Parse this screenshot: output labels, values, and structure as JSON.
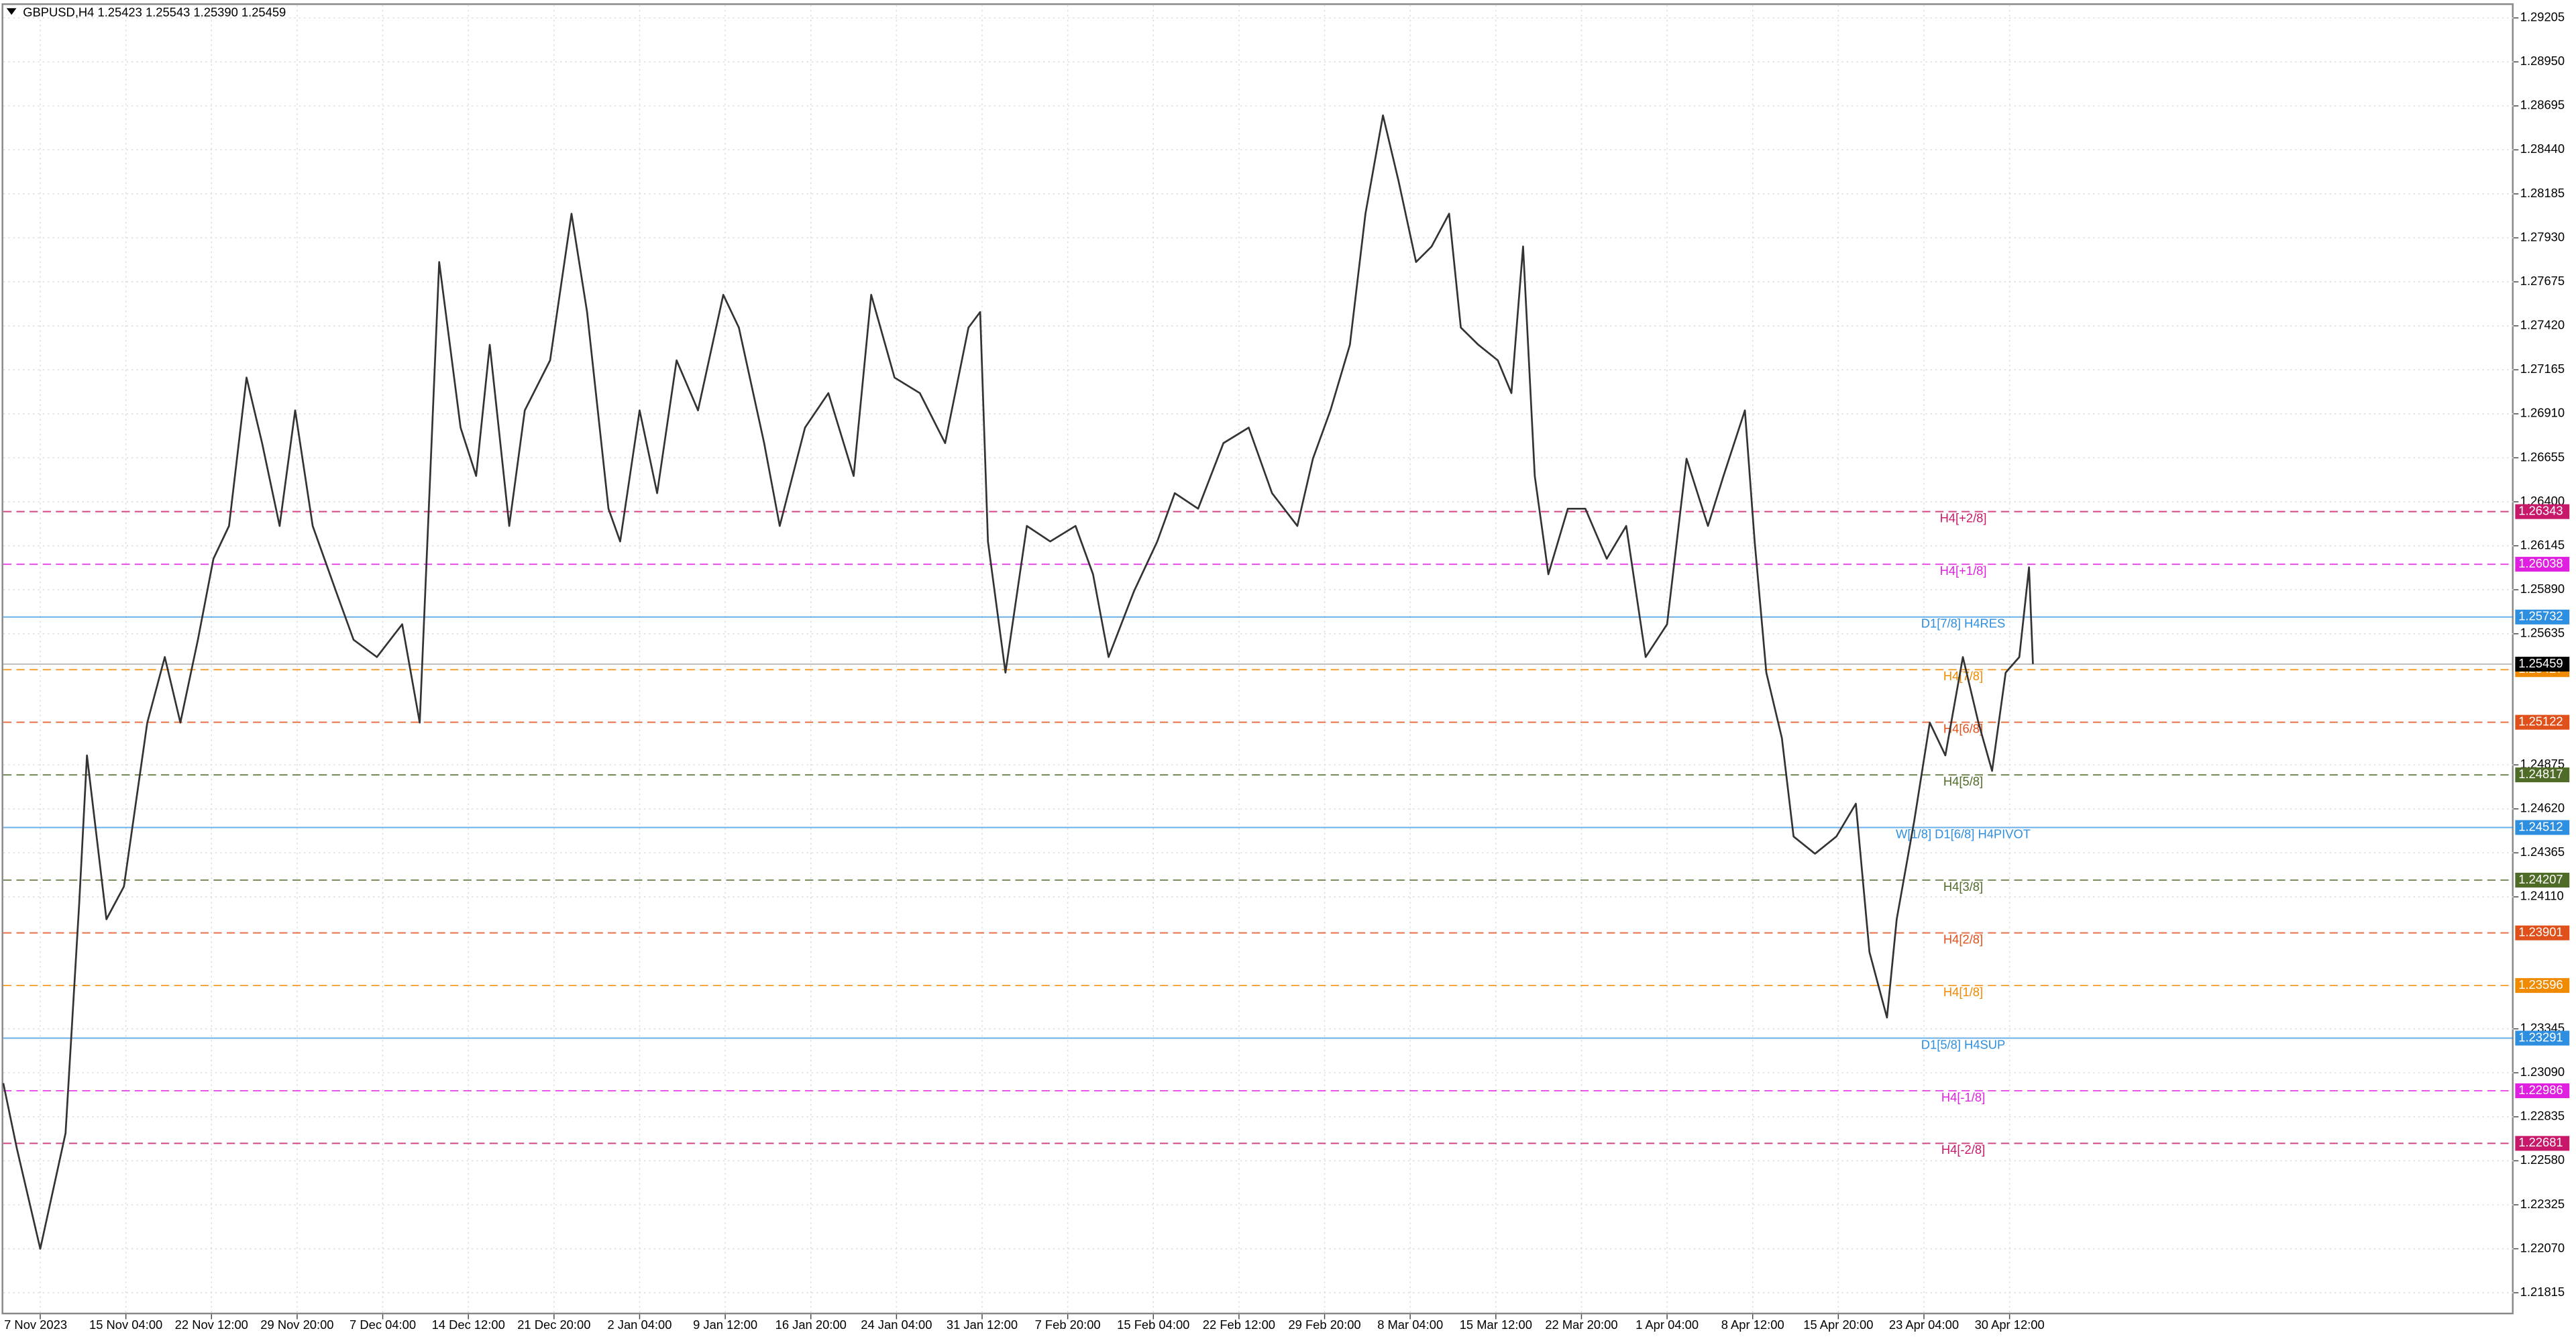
{
  "chart_data": {
    "type": "line",
    "title": "GBPUSD,H4  1.25423 1.25543 1.25390 1.25459",
    "xlim": [
      0,
      1290
    ],
    "ylim": [
      1.2169,
      1.2928
    ],
    "grid": true,
    "xticks": [
      {
        "value": 19,
        "label": "7 Nov 2023"
      },
      {
        "value": 63,
        "label": "15 Nov 04:00"
      },
      {
        "value": 107,
        "label": "22 Nov 12:00"
      },
      {
        "value": 151,
        "label": "29 Nov 20:00"
      },
      {
        "value": 195,
        "label": "7 Dec 04:00"
      },
      {
        "value": 239,
        "label": "14 Dec 12:00"
      },
      {
        "value": 283,
        "label": "21 Dec 20:00"
      },
      {
        "value": 327,
        "label": "2 Jan 04:00"
      },
      {
        "value": 371,
        "label": "9 Jan 12:00"
      },
      {
        "value": 415,
        "label": "16 Jan 20:00"
      },
      {
        "value": 459,
        "label": "24 Jan 04:00"
      },
      {
        "value": 503,
        "label": "31 Jan 12:00"
      },
      {
        "value": 547,
        "label": "7 Feb 20:00"
      },
      {
        "value": 591,
        "label": "15 Feb 04:00"
      },
      {
        "value": 635,
        "label": "22 Feb 12:00"
      },
      {
        "value": 679,
        "label": "29 Feb 20:00"
      },
      {
        "value": 723,
        "label": "8 Mar 04:00"
      },
      {
        "value": 767,
        "label": "15 Mar 12:00"
      },
      {
        "value": 811,
        "label": "22 Mar 20:00"
      },
      {
        "value": 855,
        "label": "1 Apr 04:00"
      },
      {
        "value": 899,
        "label": "8 Apr 12:00"
      },
      {
        "value": 943,
        "label": "15 Apr 20:00"
      },
      {
        "value": 987,
        "label": "23 Apr 04:00"
      },
      {
        "value": 1031,
        "label": "30 Apr 12:00"
      }
    ],
    "yticks": [
      1.29205,
      {
        "value": 1.2895,
        "label": "1.28950"
      },
      1.28695,
      {
        "value": 1.2844,
        "label": "1.28440"
      },
      1.28185,
      {
        "value": 1.2793,
        "label": "1.27930"
      },
      1.27675,
      {
        "value": 1.2742,
        "label": "1.27420"
      },
      1.27165,
      {
        "value": 1.2691,
        "label": "1.26910"
      },
      1.26655,
      {
        "value": 1.264,
        "label": "1.26400"
      },
      1.26145,
      {
        "value": 1.2589,
        "label": "1.25890"
      },
      1.25635,
      1.24875,
      {
        "value": 1.2462,
        "label": "1.24620"
      },
      1.24365,
      {
        "value": 1.2411,
        "label": "1.24110"
      },
      1.23345,
      {
        "value": 1.2309,
        "label": "1.23090"
      },
      1.22835,
      {
        "value": 1.2258,
        "label": "1.22580"
      },
      1.22325,
      {
        "value": 1.2207,
        "label": "1.22070"
      },
      1.21815
    ],
    "series": [
      {
        "name": "GBPUSD,H4",
        "color": "#333333",
        "x": [
          0,
          7,
          19,
          32,
          39,
          43,
          53,
          62,
          74,
          83,
          91,
          100,
          108,
          116,
          125,
          133,
          142,
          150,
          159,
          171,
          180,
          192,
          205,
          214,
          219,
          224,
          235,
          243,
          250,
          260,
          268,
          281,
          292,
          300,
          311,
          317,
          327,
          336,
          346,
          357,
          370,
          378,
          391,
          399,
          412,
          424,
          437,
          446,
          458,
          471,
          484,
          496,
          502,
          506,
          515,
          526,
          538,
          551,
          560,
          568,
          581,
          593,
          602,
          614,
          627,
          640,
          652,
          665,
          673,
          682,
          692,
          700,
          709,
          717,
          726,
          734,
          743,
          749,
          758,
          768,
          775,
          781,
          787,
          794,
          804,
          813,
          824,
          834,
          844,
          855,
          865,
          876,
          884,
          895,
          900,
          906,
          914,
          920,
          931,
          942,
          952,
          959,
          968,
          973,
          982,
          990,
          998,
          1007,
          1015,
          1022,
          1029,
          1036,
          1041,
          1043
        ],
        "values": [
          1.2303,
          1.2265,
          1.2207,
          1.2274,
          1.2407,
          1.2493,
          1.2398,
          1.2417,
          1.2512,
          1.255,
          1.2512,
          1.256,
          1.2607,
          1.2626,
          1.2712,
          1.2674,
          1.2626,
          1.2693,
          1.2626,
          1.2588,
          1.256,
          1.255,
          1.2569,
          1.2512,
          1.2645,
          1.2779,
          1.2683,
          1.2655,
          1.2731,
          1.2626,
          1.2693,
          1.2722,
          1.2807,
          1.275,
          1.2636,
          1.2617,
          1.2693,
          1.2645,
          1.2722,
          1.2693,
          1.276,
          1.2741,
          1.2674,
          1.2626,
          1.2683,
          1.2703,
          1.2655,
          1.276,
          1.2712,
          1.2703,
          1.2674,
          1.2741,
          1.275,
          1.2617,
          1.2541,
          1.2626,
          1.2617,
          1.2626,
          1.2598,
          1.255,
          1.2588,
          1.2617,
          1.2645,
          1.2636,
          1.2674,
          1.2683,
          1.2645,
          1.2626,
          1.2665,
          1.2693,
          1.2731,
          1.2807,
          1.2864,
          1.2826,
          1.2779,
          1.2788,
          1.2807,
          1.2741,
          1.2731,
          1.2722,
          1.2703,
          1.2788,
          1.2655,
          1.2598,
          1.2636,
          1.2636,
          1.2607,
          1.2626,
          1.255,
          1.2569,
          1.2665,
          1.2626,
          1.2655,
          1.2693,
          1.2617,
          1.2541,
          1.2503,
          1.2446,
          1.2436,
          1.2446,
          1.2465,
          1.2379,
          1.2341,
          1.2398,
          1.2455,
          1.2512,
          1.2493,
          1.255,
          1.2512,
          1.2484,
          1.2541,
          1.255,
          1.2602,
          1.2546
        ]
      }
    ],
    "levels": [
      {
        "label": "H4[+2/8]",
        "value": 1.26343,
        "color": "#c8186a",
        "dashed": true
      },
      {
        "label": "H4[+1/8]",
        "value": 1.26038,
        "color": "#e020e0",
        "dashed": true
      },
      {
        "label": "D1[7/8] H4RES",
        "value": 1.25732,
        "color": "#2e8fe0",
        "dashed": false
      },
      {
        "label": "H4[7/8]",
        "value": 1.25427,
        "color": "#f08a00",
        "dashed": true
      },
      {
        "label": "H4[6/8]",
        "value": 1.25122,
        "color": "#e0501a",
        "dashed": true
      },
      {
        "label": "H4[5/8]",
        "value": 1.24817,
        "color": "#4f6b28",
        "dashed": true
      },
      {
        "label": "W[1/8] D1[6/8] H4PIVOT",
        "value": 1.24512,
        "color": "#2e8fe0",
        "dashed": false
      },
      {
        "label": "H4[3/8]",
        "value": 1.24207,
        "color": "#4f6b28",
        "dashed": true
      },
      {
        "label": "H4[2/8]",
        "value": 1.23901,
        "color": "#e0501a",
        "dashed": true
      },
      {
        "label": "H4[1/8]",
        "value": 1.23596,
        "color": "#f08a00",
        "dashed": true
      },
      {
        "label": "D1[5/8] H4SUP",
        "value": 1.23291,
        "color": "#2e8fe0",
        "dashed": false
      },
      {
        "label": "H4[-1/8]",
        "value": 1.22986,
        "color": "#e020e0",
        "dashed": true
      },
      {
        "label": "H4[-2/8]",
        "value": 1.22681,
        "color": "#c8186a",
        "dashed": true
      }
    ],
    "current_price": 1.25459
  }
}
